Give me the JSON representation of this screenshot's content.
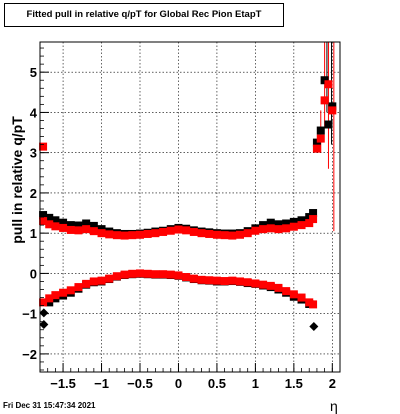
{
  "stamp": "Fri Dec 31 15:47:34 2021",
  "colors": {
    "series_red": "#ff0000",
    "series_black": "#000000",
    "grid": "#000000"
  },
  "chart_data": {
    "type": "scatter",
    "title": "Fitted pull in relative q/pT for Global Rec Pion EtapT",
    "xlabel": "η",
    "ylabel": "pull in relative q/pT",
    "xlim": [
      -1.8,
      2.1
    ],
    "ylim": [
      -2.45,
      5.75
    ],
    "xticks": [
      -1.5,
      -1,
      -0.5,
      0,
      0.5,
      1,
      1.5,
      2
    ],
    "xtick_labels": [
      "−1.5",
      "−1",
      "−0.5",
      "0",
      "0.5",
      "1",
      "1.5",
      "2"
    ],
    "yticks": [
      -2,
      -1,
      0,
      1,
      2,
      3,
      4,
      5
    ],
    "ytick_labels": [
      "−2",
      "−1",
      "0",
      "1",
      "2",
      "3",
      "4",
      "5"
    ],
    "grid": true,
    "series": [
      {
        "color": "#000000",
        "marker": "square",
        "points": [
          [
            -1.76,
            1.45
          ],
          [
            -1.68,
            1.38
          ],
          [
            -1.6,
            1.32
          ],
          [
            -1.5,
            1.26
          ],
          [
            -1.4,
            1.2
          ],
          [
            -1.3,
            1.19
          ],
          [
            -1.2,
            1.24
          ],
          [
            -1.1,
            1.18
          ],
          [
            -1.0,
            1.1
          ],
          [
            -0.9,
            1.04
          ],
          [
            -0.8,
            1.0
          ],
          [
            -0.7,
            0.98
          ],
          [
            -0.6,
            0.98
          ],
          [
            -0.5,
            0.99
          ],
          [
            -0.4,
            1.01
          ],
          [
            -0.3,
            1.04
          ],
          [
            -0.2,
            1.06
          ],
          [
            -0.1,
            1.1
          ],
          [
            0.0,
            1.13
          ],
          [
            0.1,
            1.11
          ],
          [
            0.2,
            1.07
          ],
          [
            0.3,
            1.04
          ],
          [
            0.4,
            1.02
          ],
          [
            0.5,
            1.0
          ],
          [
            0.6,
            0.99
          ],
          [
            0.7,
            0.99
          ],
          [
            0.8,
            1.0
          ],
          [
            0.9,
            1.05
          ],
          [
            1.0,
            1.12
          ],
          [
            1.1,
            1.2
          ],
          [
            1.2,
            1.26
          ],
          [
            1.3,
            1.22
          ],
          [
            1.4,
            1.24
          ],
          [
            1.5,
            1.28
          ],
          [
            1.6,
            1.32
          ],
          [
            1.7,
            1.4
          ],
          [
            1.75,
            1.5
          ],
          [
            1.8,
            3.25
          ],
          [
            1.85,
            3.55
          ],
          [
            1.9,
            4.8
          ],
          [
            1.95,
            3.7
          ],
          [
            2.0,
            4.15
          ]
        ]
      },
      {
        "color": "#ff0000",
        "marker": "square",
        "points": [
          [
            -1.76,
            3.15
          ],
          [
            -1.76,
            1.3
          ],
          [
            -1.68,
            1.22
          ],
          [
            -1.6,
            1.17
          ],
          [
            -1.5,
            1.13
          ],
          [
            -1.4,
            1.08
          ],
          [
            -1.3,
            1.07
          ],
          [
            -1.2,
            1.1
          ],
          [
            -1.1,
            1.05
          ],
          [
            -1.0,
            1.0
          ],
          [
            -0.9,
            0.97
          ],
          [
            -0.8,
            0.95
          ],
          [
            -0.7,
            0.94
          ],
          [
            -0.6,
            0.95
          ],
          [
            -0.5,
            0.96
          ],
          [
            -0.4,
            0.98
          ],
          [
            -0.3,
            1.0
          ],
          [
            -0.2,
            1.03
          ],
          [
            -0.1,
            1.06
          ],
          [
            0.0,
            1.09
          ],
          [
            0.1,
            1.07
          ],
          [
            0.2,
            1.03
          ],
          [
            0.3,
            1.0
          ],
          [
            0.4,
            0.98
          ],
          [
            0.5,
            0.96
          ],
          [
            0.6,
            0.95
          ],
          [
            0.7,
            0.94
          ],
          [
            0.8,
            0.96
          ],
          [
            0.9,
            1.0
          ],
          [
            1.0,
            1.06
          ],
          [
            1.1,
            1.1
          ],
          [
            1.2,
            1.12
          ],
          [
            1.3,
            1.1
          ],
          [
            1.4,
            1.12
          ],
          [
            1.5,
            1.16
          ],
          [
            1.6,
            1.2
          ],
          [
            1.7,
            1.25
          ],
          [
            1.75,
            1.35
          ],
          [
            1.8,
            3.1
          ],
          [
            1.85,
            3.35
          ],
          [
            1.9,
            4.3
          ],
          [
            1.95,
            4.7
          ],
          [
            2.0,
            4.05
          ]
        ]
      },
      {
        "color": "#000000",
        "marker": "square",
        "points": [
          [
            -1.68,
            -0.72
          ],
          [
            -1.6,
            -0.62
          ],
          [
            -1.5,
            -0.55
          ],
          [
            -1.4,
            -0.48
          ],
          [
            -1.3,
            -0.38
          ],
          [
            -1.2,
            -0.28
          ],
          [
            -1.1,
            -0.22
          ],
          [
            -1.0,
            -0.2
          ],
          [
            -0.9,
            -0.14
          ],
          [
            -0.8,
            -0.08
          ],
          [
            -0.7,
            -0.04
          ],
          [
            -0.6,
            -0.02
          ],
          [
            -0.5,
            -0.01
          ],
          [
            -0.4,
            -0.02
          ],
          [
            -0.3,
            -0.03
          ],
          [
            -0.2,
            -0.03
          ],
          [
            -0.1,
            -0.04
          ],
          [
            0.0,
            -0.06
          ],
          [
            0.1,
            -0.1
          ],
          [
            0.2,
            -0.14
          ],
          [
            0.3,
            -0.17
          ],
          [
            0.4,
            -0.18
          ],
          [
            0.5,
            -0.2
          ],
          [
            0.6,
            -0.2
          ],
          [
            0.7,
            -0.19
          ],
          [
            0.8,
            -0.21
          ],
          [
            0.9,
            -0.24
          ],
          [
            1.0,
            -0.26
          ],
          [
            1.1,
            -0.3
          ],
          [
            1.2,
            -0.34
          ],
          [
            1.3,
            -0.4
          ],
          [
            1.4,
            -0.48
          ],
          [
            1.5,
            -0.58
          ],
          [
            1.6,
            -0.65
          ],
          [
            1.7,
            -0.76
          ]
        ]
      },
      {
        "color": "#ff0000",
        "marker": "square",
        "points": [
          [
            -1.76,
            -0.72
          ],
          [
            -1.68,
            -0.62
          ],
          [
            -1.6,
            -0.54
          ],
          [
            -1.5,
            -0.48
          ],
          [
            -1.4,
            -0.42
          ],
          [
            -1.3,
            -0.34
          ],
          [
            -1.2,
            -0.26
          ],
          [
            -1.1,
            -0.2
          ],
          [
            -1.0,
            -0.18
          ],
          [
            -0.9,
            -0.13
          ],
          [
            -0.8,
            -0.07
          ],
          [
            -0.7,
            -0.03
          ],
          [
            -0.6,
            -0.01
          ],
          [
            -0.5,
            0.0
          ],
          [
            -0.4,
            -0.01
          ],
          [
            -0.3,
            -0.02
          ],
          [
            -0.2,
            -0.02
          ],
          [
            -0.1,
            -0.03
          ],
          [
            0.0,
            -0.05
          ],
          [
            0.1,
            -0.09
          ],
          [
            0.2,
            -0.13
          ],
          [
            0.3,
            -0.16
          ],
          [
            0.4,
            -0.17
          ],
          [
            0.5,
            -0.18
          ],
          [
            0.6,
            -0.19
          ],
          [
            0.7,
            -0.18
          ],
          [
            0.8,
            -0.2
          ],
          [
            0.9,
            -0.22
          ],
          [
            1.0,
            -0.25
          ],
          [
            1.1,
            -0.28
          ],
          [
            1.2,
            -0.31
          ],
          [
            1.3,
            -0.36
          ],
          [
            1.4,
            -0.44
          ],
          [
            1.5,
            -0.52
          ],
          [
            1.6,
            -0.6
          ],
          [
            1.7,
            -0.72
          ],
          [
            1.75,
            -0.77
          ]
        ]
      },
      {
        "color": "#000000",
        "marker": "diamond",
        "points": [
          [
            -1.75,
            -1.27
          ],
          [
            -1.75,
            -0.98
          ],
          [
            1.76,
            -1.32
          ]
        ]
      }
    ],
    "error_bars": [
      {
        "x": 1.85,
        "y_low": 3.0,
        "y_high": 4.05,
        "color": "#ff0000"
      },
      {
        "x": 1.9,
        "y_low": 3.6,
        "y_high": 5.75,
        "color": "#ff0000"
      },
      {
        "x": 1.93,
        "y_low": 4.0,
        "y_high": 5.75,
        "color": "#000000"
      },
      {
        "x": 1.95,
        "y_low": 2.6,
        "y_high": 5.75,
        "color": "#ff0000"
      },
      {
        "x": 1.99,
        "y_low": 3.2,
        "y_high": 5.75,
        "color": "#000000"
      },
      {
        "x": 2.02,
        "y_low": 1.05,
        "y_high": 5.75,
        "color": "#ff0000"
      }
    ]
  }
}
